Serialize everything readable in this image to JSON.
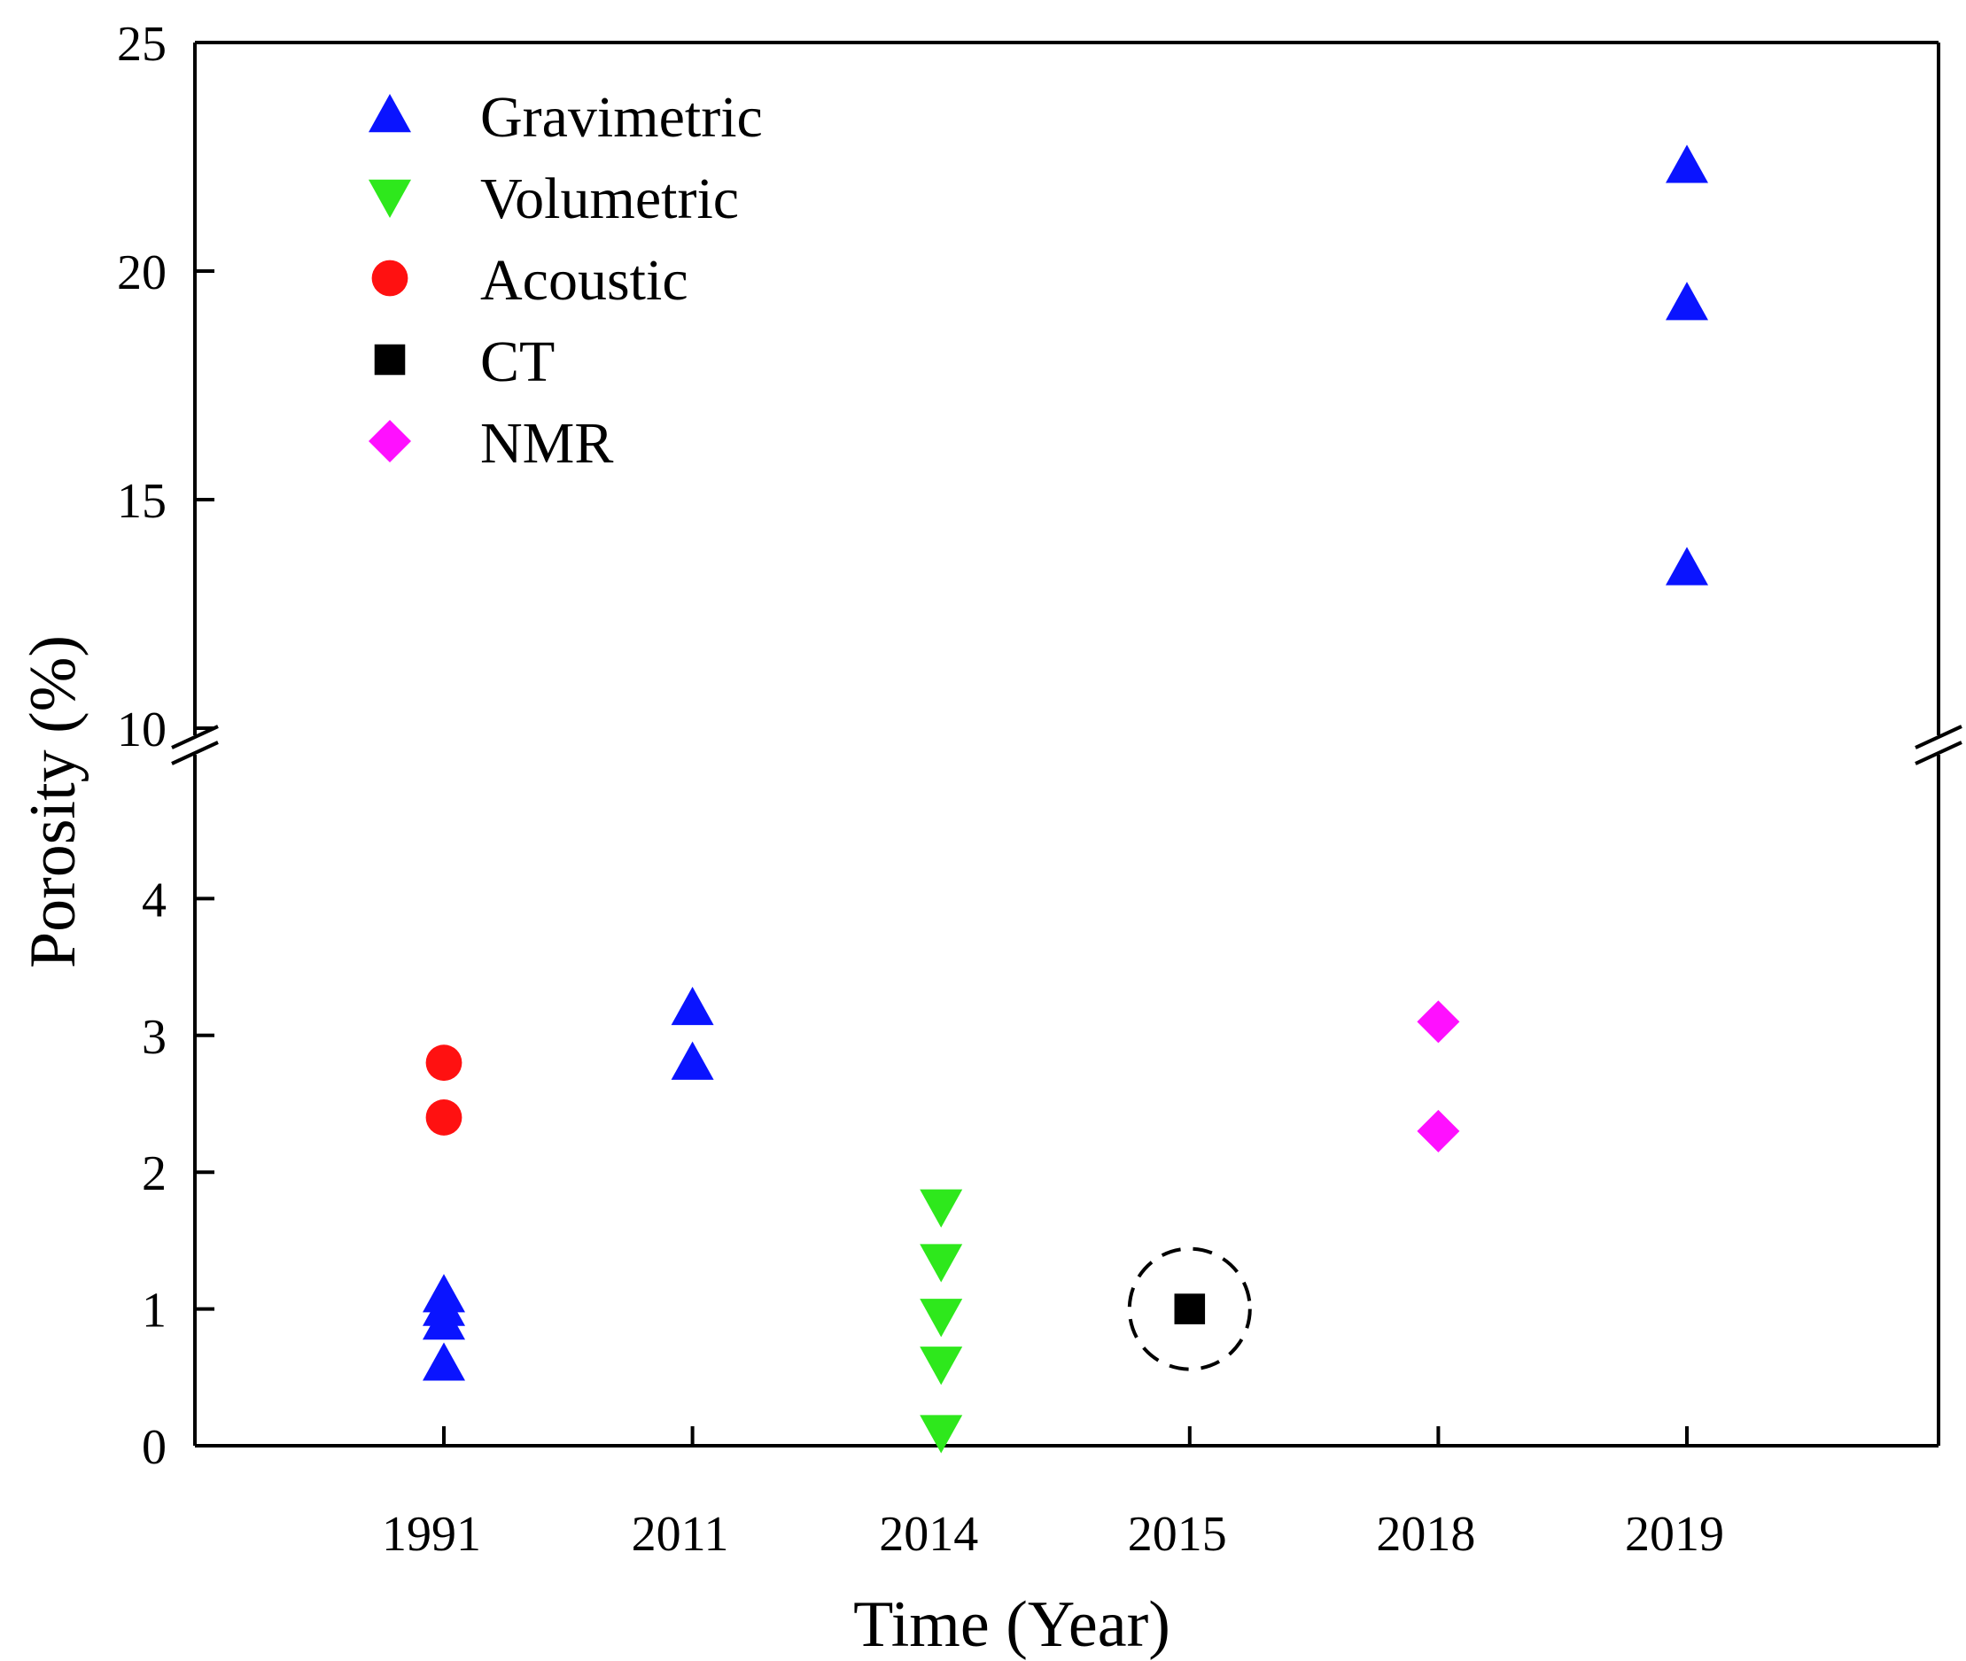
{
  "chart_data": {
    "type": "scatter",
    "title": "",
    "xlabel": "Time (Year)",
    "ylabel": "Porosity (%)",
    "categories": [
      "1991",
      "2011",
      "2014",
      "2015",
      "2018",
      "2019"
    ],
    "y_axis": {
      "broken": true,
      "lower_range": [
        0,
        5
      ],
      "upper_range": [
        10,
        25
      ],
      "lower_ticks": [
        "0",
        "1",
        "2",
        "3",
        "4"
      ],
      "upper_ticks": [
        "10",
        "15",
        "20",
        "25"
      ],
      "tick_values": [
        0,
        1,
        2,
        3,
        4,
        10,
        15,
        20,
        25
      ]
    },
    "legend_position": "top-left",
    "series": [
      {
        "name": "Gravimetric",
        "marker": "triangle-up",
        "color": "#0a14ff",
        "points": [
          {
            "x": "1991",
            "y": 0.6
          },
          {
            "x": "1991",
            "y": 0.9
          },
          {
            "x": "1991",
            "y": 1.0
          },
          {
            "x": "1991",
            "y": 1.1
          },
          {
            "x": "2011",
            "y": 2.8
          },
          {
            "x": "2011",
            "y": 3.2
          },
          {
            "x": "2019",
            "y": 13.5
          },
          {
            "x": "2019",
            "y": 19.3
          },
          {
            "x": "2019",
            "y": 22.3
          }
        ]
      },
      {
        "name": "Volumetric",
        "marker": "triangle-down",
        "color": "#2ee81c",
        "points": [
          {
            "x": "2014",
            "y": 0.1
          },
          {
            "x": "2014",
            "y": 0.6
          },
          {
            "x": "2014",
            "y": 0.95
          },
          {
            "x": "2014",
            "y": 1.35
          },
          {
            "x": "2014",
            "y": 1.75
          }
        ]
      },
      {
        "name": "Acoustic",
        "marker": "circle",
        "color": "#ff1111",
        "points": [
          {
            "x": "1991",
            "y": 2.4
          },
          {
            "x": "1991",
            "y": 2.8
          }
        ]
      },
      {
        "name": "CT",
        "marker": "square",
        "color": "#000000",
        "points": [
          {
            "x": "2015",
            "y": 1.0
          }
        ]
      },
      {
        "name": "NMR",
        "marker": "diamond",
        "color": "#ff10ff",
        "points": [
          {
            "x": "2018",
            "y": 2.3
          },
          {
            "x": "2018",
            "y": 3.1
          }
        ]
      }
    ],
    "annotations": [
      {
        "type": "dashed-circle",
        "x": "2015",
        "y": 1.0,
        "note": "highlight around CT point"
      }
    ]
  }
}
